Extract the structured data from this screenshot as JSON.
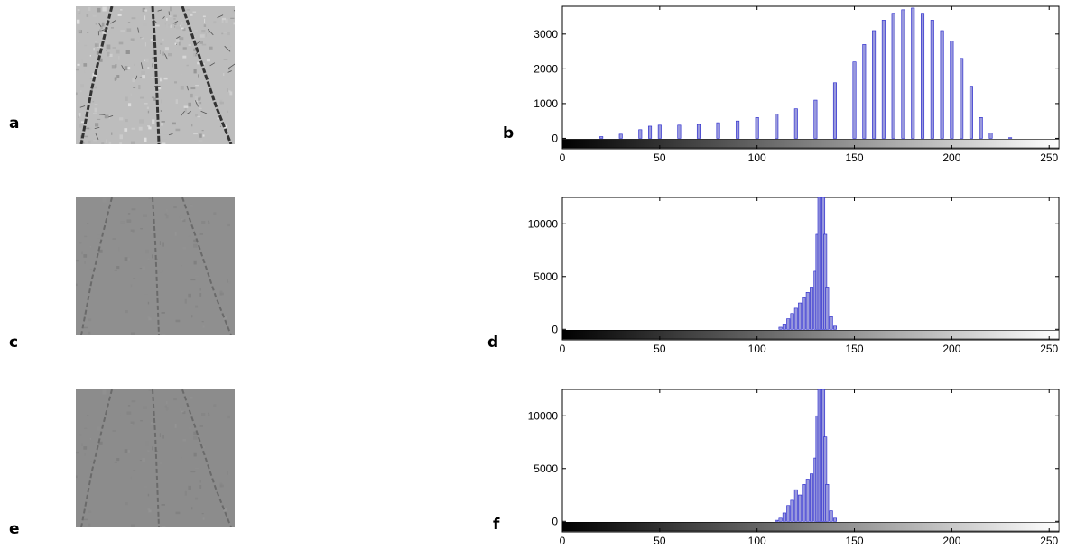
{
  "panels": [
    {
      "label": "a",
      "kind": "image",
      "shade": "#bdbdbd",
      "contrast": "high"
    },
    {
      "label": "b",
      "kind": "histogram"
    },
    {
      "label": "c",
      "kind": "image",
      "shade": "#8f8f8f",
      "contrast": "low"
    },
    {
      "label": "d",
      "kind": "histogram"
    },
    {
      "label": "e",
      "kind": "image",
      "shade": "#8c8c8c",
      "contrast": "low"
    },
    {
      "label": "f",
      "kind": "histogram"
    }
  ],
  "colors": {
    "bar_fill": "#9999dd",
    "bar_edge": "#2222cc",
    "axes": "#000000"
  },
  "chart_data": [
    {
      "type": "bar",
      "panel": "b",
      "title": "",
      "xlabel": "",
      "ylabel": "",
      "xlim": [
        0,
        255
      ],
      "ylim": [
        -300,
        3800
      ],
      "xticks": [
        0,
        50,
        100,
        150,
        200,
        250
      ],
      "yticks": [
        0,
        1000,
        2000,
        3000
      ],
      "colorbar": "grayscale 0-255",
      "x": [
        20,
        30,
        40,
        45,
        50,
        60,
        70,
        80,
        90,
        100,
        110,
        120,
        130,
        140,
        150,
        155,
        160,
        165,
        170,
        175,
        180,
        185,
        190,
        195,
        200,
        205,
        210,
        215,
        220,
        230
      ],
      "values": [
        50,
        120,
        250,
        350,
        380,
        380,
        400,
        450,
        500,
        600,
        700,
        850,
        1100,
        1600,
        2200,
        2700,
        3100,
        3400,
        3600,
        3700,
        3750,
        3600,
        3400,
        3100,
        2800,
        2300,
        1500,
        600,
        150,
        20
      ]
    },
    {
      "type": "bar",
      "panel": "d",
      "title": "",
      "xlabel": "",
      "ylabel": "",
      "xlim": [
        0,
        255
      ],
      "ylim": [
        -1000,
        12500
      ],
      "xticks": [
        0,
        50,
        100,
        150,
        200,
        250
      ],
      "yticks": [
        0,
        5000,
        10000
      ],
      "colorbar": "grayscale 0-255",
      "x": [
        112,
        114,
        116,
        118,
        120,
        122,
        124,
        126,
        128,
        130,
        131,
        132,
        133,
        134,
        135,
        136,
        138,
        140
      ],
      "values": [
        200,
        500,
        1000,
        1500,
        2000,
        2500,
        3000,
        3500,
        4000,
        5500,
        9000,
        12500,
        12500,
        12500,
        9000,
        4000,
        1200,
        300
      ]
    },
    {
      "type": "bar",
      "panel": "f",
      "title": "",
      "xlabel": "",
      "ylabel": "",
      "xlim": [
        0,
        255
      ],
      "ylim": [
        -1000,
        12500
      ],
      "xticks": [
        0,
        50,
        100,
        150,
        200,
        250
      ],
      "yticks": [
        0,
        5000,
        10000
      ],
      "colorbar": "grayscale 0-255",
      "x": [
        110,
        112,
        114,
        116,
        118,
        120,
        122,
        124,
        126,
        128,
        130,
        131,
        132,
        133,
        134,
        135,
        136,
        138,
        140
      ],
      "values": [
        100,
        300,
        800,
        1500,
        2000,
        3000,
        2500,
        3500,
        4000,
        4500,
        6000,
        10000,
        12500,
        12500,
        12500,
        8000,
        3500,
        1000,
        300
      ]
    }
  ]
}
